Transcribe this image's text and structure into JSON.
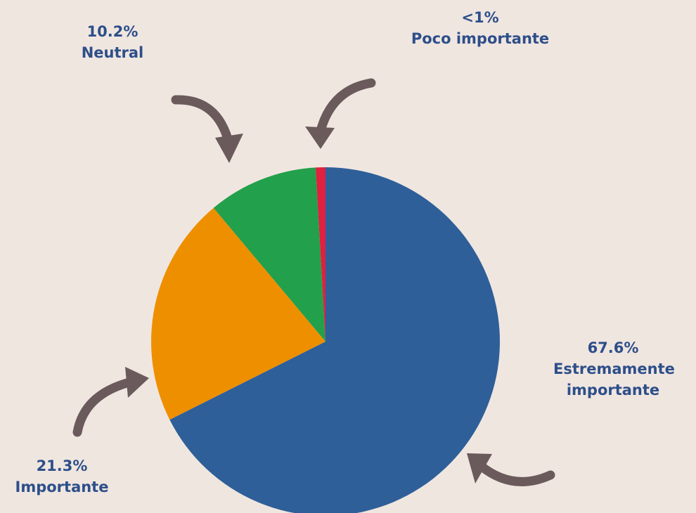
{
  "chart_data": {
    "type": "pie",
    "categories": [
      "Estremamente importante",
      "Importante",
      "Neutral",
      "Poco importante"
    ],
    "values": [
      67.6,
      21.3,
      10.2,
      0.9
    ],
    "value_labels": [
      "67.6%",
      "21.3%",
      "10.2%",
      "<1%"
    ],
    "colors": [
      "#2e5f98",
      "#ee8f00",
      "#22a04b",
      "#e0203f"
    ]
  }
}
